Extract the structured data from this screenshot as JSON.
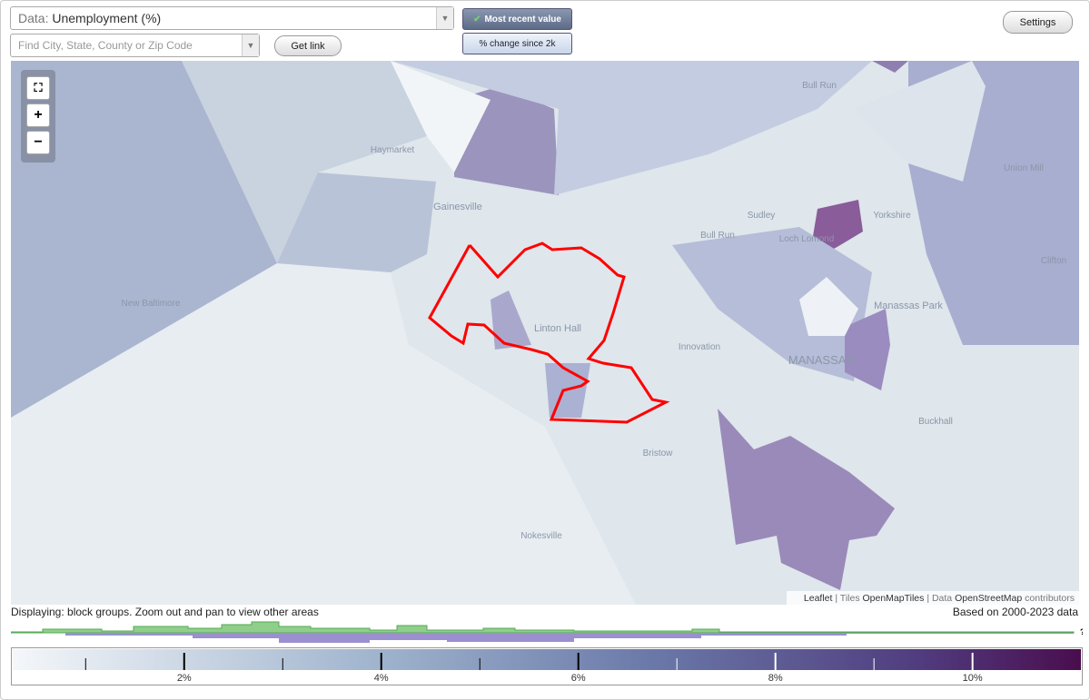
{
  "toolbar": {
    "data_prefix": "Data:",
    "data_value": "Unemployment (%)",
    "search_placeholder": "Find City, State, County or Zip Code",
    "get_link": "Get link",
    "most_recent": "Most recent value",
    "pct_change": "% change since 2k",
    "settings": "Settings"
  },
  "zoom": {
    "in": "+",
    "out": "−"
  },
  "map_labels": [
    "Haymarket",
    "Gainesville",
    "Bull Run",
    "Union Mill",
    "Sudley",
    "Yorkshire",
    "Bull Run",
    "Loch Lomond",
    "Clifton",
    "New Baltimore",
    "Linton Hall",
    "Innovation",
    "Manassas Park",
    "MANASSAS",
    "Buckhall",
    "Bristow",
    "Nokesville"
  ],
  "attribution": {
    "leaflet": "Leaflet",
    "tiles_prefix": "Tiles",
    "tiles": "OpenMapTiles",
    "data_prefix": "Data",
    "data": "OpenStreetMap",
    "contributors": "contributors"
  },
  "status": {
    "displaying": "Displaying: block groups. Zoom out and pan to view other areas",
    "based_on": "Based on 2000-2023 data",
    "help": "?"
  },
  "legend": {
    "range": [
      0.26,
      11.1
    ],
    "ticks": [
      {
        "value": 2,
        "label": "2%"
      },
      {
        "value": 4,
        "label": "4%"
      },
      {
        "value": 6,
        "label": "6%"
      },
      {
        "value": 8,
        "label": "8%"
      },
      {
        "value": 10,
        "label": "10%"
      }
    ],
    "minor_ticks": [
      1,
      3,
      5,
      7,
      9
    ]
  }
}
